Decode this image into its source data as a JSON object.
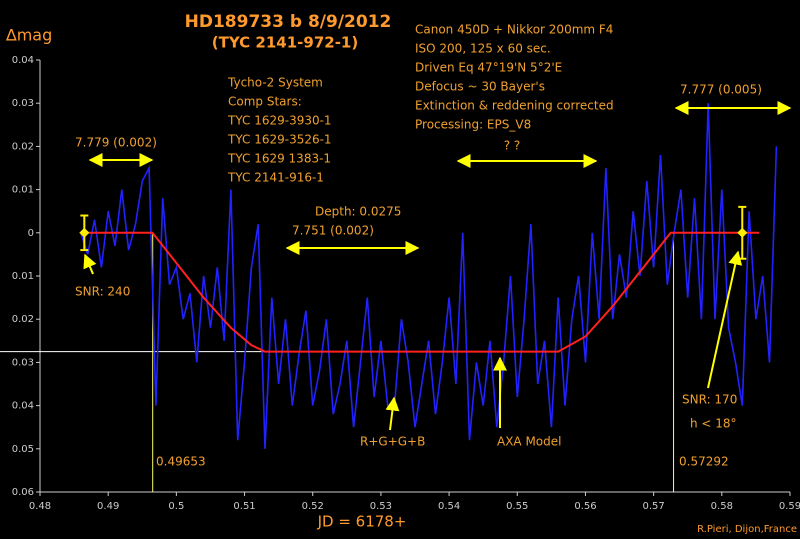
{
  "chart_data": {
    "type": "line",
    "title": "HD189733 b  8/9/2012",
    "subtitle": "(TYC 2141-972-1)",
    "ylabel": "∆mag",
    "xlabel": "JD = 6178+",
    "credit": "R.Pieri, Dijon,France",
    "annotations": [
      "Canon 450D + Nikkor 200mm F4",
      "ISO 200, 125 x 60 sec.",
      "Driven Eq  47°19'N  5°2'E",
      "Defocus ~ 30 Bayer's",
      "Extinction & reddening corrected",
      "Processing: EPS_V8",
      "Tycho-2 System",
      "Comp Stars:",
      "TYC 1629-3930-1",
      "TYC 1629-3526-1",
      "TYC 1629 1383-1",
      "TYC 2141-916-1",
      "7.779 (0.002)",
      "Depth: 0.0275",
      "7.751 (0.002)",
      "? ?",
      "7.777 (0.005)",
      "SNR: 240",
      "SNR: 170",
      "h < 18°",
      "R+G+G+B",
      "AXA Model",
      "0.49653",
      "0.57292"
    ],
    "xlim": [
      0.48,
      0.59
    ],
    "xticks": [
      0.48,
      0.49,
      0.5,
      0.51,
      0.52,
      0.53,
      0.54,
      0.55,
      0.56,
      0.57,
      0.58,
      0.59
    ],
    "ylim": [
      0.06,
      -0.04
    ],
    "yticks": [
      {
        "value": -0.04,
        "label": "0.04"
      },
      {
        "value": -0.03,
        "label": "0.03"
      },
      {
        "value": -0.02,
        "label": "0.02"
      },
      {
        "value": -0.01,
        "label": "0.01"
      },
      0,
      0.01,
      0.02,
      0.03,
      0.04,
      0.05,
      0.06
    ],
    "markers": [
      0.49653,
      0.57292
    ],
    "depth": 0.0275,
    "series": [
      {
        "name": "R+G+G+B",
        "color": "#2222ff",
        "x": [
          0.486,
          0.487,
          0.488,
          0.489,
          0.49,
          0.491,
          0.492,
          0.493,
          0.494,
          0.495,
          0.496,
          0.497,
          0.498,
          0.499,
          0.5,
          0.501,
          0.502,
          0.503,
          0.504,
          0.505,
          0.506,
          0.507,
          0.508,
          0.509,
          0.51,
          0.511,
          0.512,
          0.513,
          0.514,
          0.515,
          0.516,
          0.517,
          0.518,
          0.519,
          0.52,
          0.521,
          0.522,
          0.523,
          0.524,
          0.525,
          0.526,
          0.527,
          0.528,
          0.529,
          0.53,
          0.531,
          0.532,
          0.533,
          0.534,
          0.535,
          0.536,
          0.537,
          0.538,
          0.539,
          0.54,
          0.541,
          0.542,
          0.543,
          0.544,
          0.545,
          0.546,
          0.547,
          0.548,
          0.549,
          0.55,
          0.551,
          0.552,
          0.553,
          0.554,
          0.555,
          0.556,
          0.557,
          0.558,
          0.559,
          0.56,
          0.561,
          0.562,
          0.563,
          0.564,
          0.565,
          0.566,
          0.567,
          0.568,
          0.569,
          0.57,
          0.571,
          0.572,
          0.573,
          0.574,
          0.575,
          0.576,
          0.577,
          0.578,
          0.579,
          0.58,
          0.581,
          0.582,
          0.583,
          0.584,
          0.585,
          0.586,
          0.587,
          0.588
        ],
        "values": [
          0,
          0.005,
          -0.003,
          0.008,
          -0.005,
          0.003,
          -0.01,
          0.004,
          -0.002,
          -0.012,
          -0.015,
          0.04,
          -0.008,
          0.012,
          0.008,
          0.02,
          0.014,
          0.03,
          0.01,
          0.022,
          0.008,
          0.025,
          -0.01,
          0.048,
          0.03,
          0.008,
          -0.002,
          0.05,
          0.015,
          0.035,
          0.02,
          0.04,
          0.028,
          0.018,
          0.04,
          0.032,
          0.02,
          0.042,
          0.035,
          0.025,
          0.045,
          0.03,
          0.015,
          0.038,
          0.025,
          0.04,
          0.04,
          0.02,
          0.03,
          0.045,
          0.035,
          0.025,
          0.042,
          0.03,
          0.015,
          0.035,
          0.0,
          0.048,
          0.03,
          0.04,
          0.025,
          0.045,
          0.03,
          0.01,
          0.038,
          0.02,
          -0.002,
          0.035,
          0.025,
          0.045,
          0.015,
          0.04,
          0.02,
          0.01,
          0.03,
          0.0,
          0.02,
          -0.015,
          0.02,
          0.005,
          0.015,
          -0.005,
          0.01,
          -0.012,
          0.008,
          -0.018,
          0.012,
          0.0,
          -0.01,
          0.015,
          -0.008,
          0.02,
          -0.03,
          0.02,
          -0.01,
          0.022,
          0.03,
          0.04,
          -0.005,
          0.02,
          0.01,
          0.03,
          -0.02
        ]
      },
      {
        "name": "AXA Model",
        "color": "#ff2020",
        "x": [
          0.4865,
          0.4965,
          0.5,
          0.504,
          0.508,
          0.511,
          0.513,
          0.556,
          0.56,
          0.564,
          0.568,
          0.5725,
          0.5855
        ],
        "values": [
          0,
          0,
          0.007,
          0.015,
          0.022,
          0.026,
          0.0275,
          0.0275,
          0.024,
          0.017,
          0.009,
          0,
          0
        ]
      }
    ],
    "points": {
      "color": "#ffee00",
      "x": [
        0.4865,
        0.583
      ],
      "values": [
        0,
        0
      ],
      "errors": [
        0.004,
        0.006
      ]
    }
  }
}
